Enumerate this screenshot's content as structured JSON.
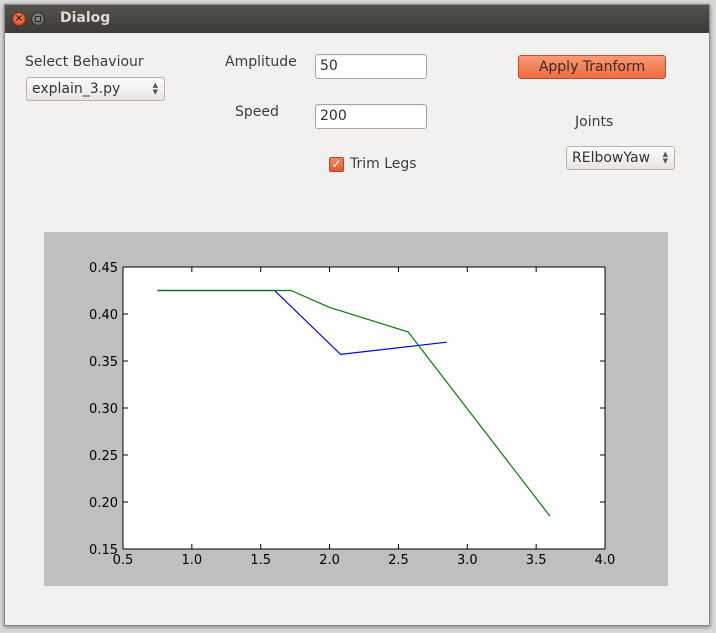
{
  "window": {
    "title": "Dialog"
  },
  "behaviour": {
    "label": "Select Behaviour",
    "selected": "explain_3.py"
  },
  "amplitude": {
    "label": "Amplitude",
    "value": "50"
  },
  "speed": {
    "label": "Speed",
    "value": "200"
  },
  "apply": {
    "label": "Apply Tranform"
  },
  "joints": {
    "label": "Joints",
    "selected": "RElbowYaw"
  },
  "trim": {
    "label": "Trim Legs",
    "checked": true
  },
  "colors": {
    "accent": "#ee6d43",
    "series1": "#0000ff",
    "series2": "#008000"
  },
  "chart_data": {
    "type": "line",
    "title": "",
    "xlabel": "",
    "ylabel": "",
    "xlim": [
      0.5,
      4.0
    ],
    "ylim": [
      0.15,
      0.45
    ],
    "xticks": [
      0.5,
      1.0,
      1.5,
      2.0,
      2.5,
      3.0,
      3.5,
      4.0
    ],
    "yticks": [
      0.15,
      0.2,
      0.25,
      0.3,
      0.35,
      0.4,
      0.45
    ],
    "xtick_labels": [
      "0.5",
      "1.0",
      "1.5",
      "2.0",
      "2.5",
      "3.0",
      "3.5",
      "4.0"
    ],
    "ytick_labels": [
      "0.15",
      "0.20",
      "0.25",
      "0.30",
      "0.35",
      "0.40",
      "0.45"
    ],
    "grid": false,
    "legend": false,
    "series": [
      {
        "color": "#0000ff",
        "x": [
          0.75,
          1.6,
          2.08,
          2.85
        ],
        "y": [
          0.425,
          0.425,
          0.357,
          0.37
        ]
      },
      {
        "color": "#008000",
        "x": [
          0.75,
          1.72,
          2.0,
          2.57,
          3.6
        ],
        "y": [
          0.425,
          0.425,
          0.407,
          0.381,
          0.185
        ]
      }
    ]
  }
}
